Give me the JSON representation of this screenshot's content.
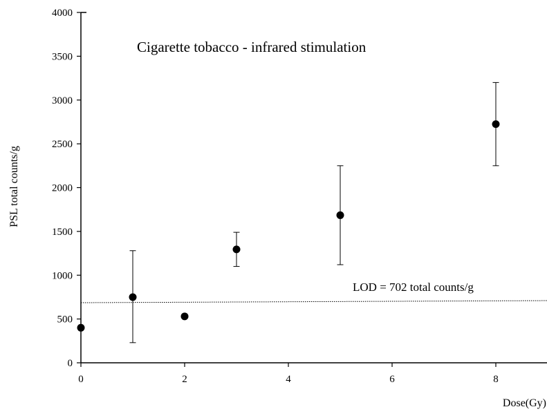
{
  "chart_data": {
    "type": "scatter",
    "title": "Cigarette tobacco  -  infrared stimulation",
    "xlabel": "Dose(Gy)",
    "ylabel": "PSL total counts/g",
    "xlim": [
      0,
      9
    ],
    "ylim": [
      0,
      4000
    ],
    "x_ticks": [
      0,
      2,
      4,
      6,
      8
    ],
    "y_ticks": [
      0,
      500,
      1000,
      1500,
      2000,
      2500,
      3000,
      3500,
      4000
    ],
    "grid": false,
    "legend": "none",
    "series": [
      {
        "points": [
          {
            "x": 0,
            "y": 400,
            "err_low": 400,
            "err_high": 400
          },
          {
            "x": 1,
            "y": 750,
            "err_low": 230,
            "err_high": 1280
          },
          {
            "x": 2,
            "y": 530,
            "err_low": 530,
            "err_high": 530
          },
          {
            "x": 3,
            "y": 1295,
            "err_low": 1100,
            "err_high": 1490
          },
          {
            "x": 5,
            "y": 1685,
            "err_low": 1120,
            "err_high": 2250
          },
          {
            "x": 8,
            "y": 2725,
            "err_low": 2250,
            "err_high": 3200
          }
        ]
      }
    ],
    "reference_line": {
      "y": 702,
      "style": "dotted",
      "label": "LOD = 702 total counts/g"
    },
    "colors": {
      "marker": "#000000",
      "axis": "#000000"
    }
  }
}
